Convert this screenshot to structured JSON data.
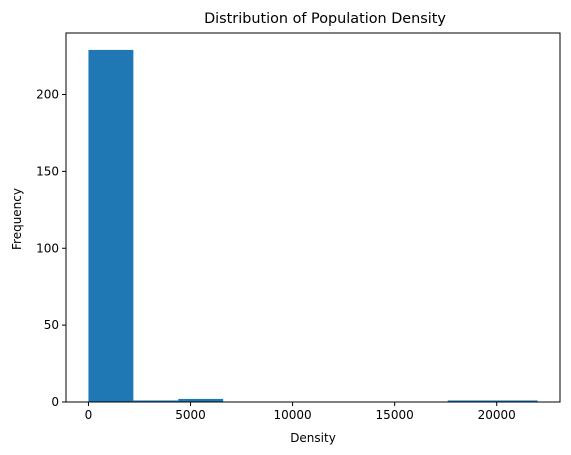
{
  "chart_data": {
    "type": "histogram",
    "title": "Distribution of Population Density",
    "xlabel": "Density",
    "ylabel": "Frequency",
    "xlim": [
      -1100,
      23100
    ],
    "ylim": [
      0,
      240
    ],
    "x_ticks": [
      0,
      5000,
      10000,
      15000,
      20000
    ],
    "y_ticks": [
      0,
      50,
      100,
      150,
      200
    ],
    "bin_edges": [
      0,
      2200,
      4400,
      6600,
      8800,
      11000,
      13200,
      15400,
      17600,
      19800,
      22000
    ],
    "counts": [
      229,
      1,
      2,
      0,
      0,
      0,
      0,
      0,
      1,
      1
    ],
    "bar_color": "#1f77b4",
    "grid": false,
    "legend": false
  }
}
